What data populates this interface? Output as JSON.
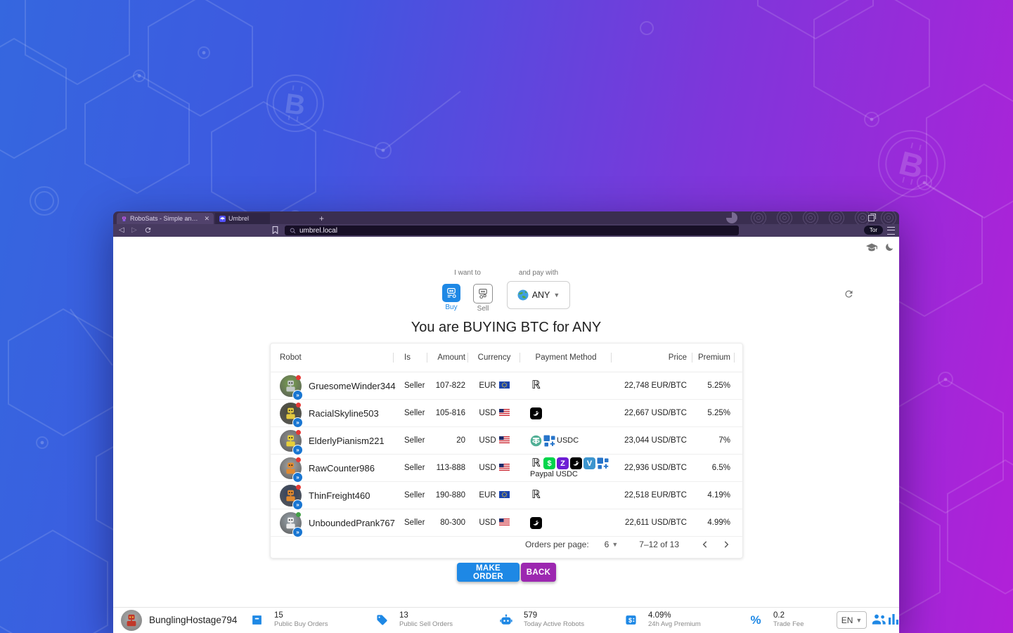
{
  "browser": {
    "tabs": [
      {
        "title": "RoboSats - Simple and Private Bit...",
        "favicon": "robosats-favicon"
      },
      {
        "title": "Umbrel",
        "favicon": "umbrel-favicon"
      }
    ],
    "new_tab_label": "+",
    "url": "umbrel.local",
    "tor_button_label": "Tor"
  },
  "controls": {
    "want_label": "I want to",
    "buy_label": "Buy",
    "sell_label": "Sell",
    "pay_label": "and pay with",
    "pay_selected": "ANY"
  },
  "title": "You are BUYING BTC for ANY",
  "orderbook": {
    "headers": {
      "robot": "Robot",
      "is": "Is",
      "amount": "Amount",
      "currency": "Currency",
      "payment": "Payment Method",
      "price": "Price",
      "premium": "Premium"
    },
    "rows": [
      {
        "robot": "GruesomeWinder344",
        "is": "Seller",
        "amount": "107-822",
        "currency": "EUR",
        "flag": "eu",
        "payments": [
          "revolut"
        ],
        "payment_text": "",
        "price": "22,748 EUR/BTC",
        "premium": "5.25%",
        "av_bg": "#79a24f",
        "av_fg": "#c2c9c5",
        "dot": "#e53935"
      },
      {
        "robot": "RacialSkyline503",
        "is": "Seller",
        "amount": "105-816",
        "currency": "USD",
        "flag": "us",
        "payments": [
          "strike"
        ],
        "payment_text": "",
        "price": "22,667 USD/BTC",
        "premium": "5.25%",
        "av_bg": "#4a4a38",
        "av_fg": "#e3c93f",
        "dot": "#e53935"
      },
      {
        "robot": "ElderlyPianism221",
        "is": "Seller",
        "amount": "20",
        "currency": "USD",
        "flag": "us",
        "payments": [
          "tether",
          "usdc"
        ],
        "payment_text": "USDC",
        "price": "23,044 USD/BTC",
        "premium": "7%",
        "av_bg": "#8f8f8f",
        "av_fg": "#e8cf3a",
        "dot": "#e53935"
      },
      {
        "robot": "RawCounter986",
        "is": "Seller",
        "amount": "113-888",
        "currency": "USD",
        "flag": "us",
        "payments": [
          "revolut",
          "cashapp",
          "zelle",
          "strike",
          "venmo",
          "usdc"
        ],
        "payment_text": "Paypal USDC",
        "price": "22,936 USD/BTC",
        "premium": "6.5%",
        "av_bg": "#a5a5a5",
        "av_fg": "#e0892f",
        "dot": "#e53935"
      },
      {
        "robot": "ThinFreight460",
        "is": "Seller",
        "amount": "190-880",
        "currency": "EUR",
        "flag": "eu",
        "payments": [
          "revolut"
        ],
        "payment_text": "",
        "price": "22,518 EUR/BTC",
        "premium": "4.19%",
        "av_bg": "#31415f",
        "av_fg": "#e0892f",
        "dot": "#e53935"
      },
      {
        "robot": "UnboundedPrank767",
        "is": "Seller",
        "amount": "80-300",
        "currency": "USD",
        "flag": "us",
        "payments": [
          "strike"
        ],
        "payment_text": "",
        "price": "22,611 USD/BTC",
        "premium": "4.99%",
        "av_bg": "#9aa5ad",
        "av_fg": "#ececec",
        "dot": "#43a047"
      }
    ],
    "pagination": {
      "label": "Orders per page:",
      "per_page": "6",
      "range": "7–12 of 13"
    }
  },
  "actions": {
    "make_order": "MAKE ORDER",
    "back": "BACK"
  },
  "statusbar": {
    "nickname": "BunglingHostage794",
    "stats": [
      {
        "icon": "buy-orders-icon",
        "value": "15",
        "label": "Public Buy Orders"
      },
      {
        "icon": "sell-tag-icon",
        "value": "13",
        "label": "Public Sell Orders"
      },
      {
        "icon": "robot-icon",
        "value": "579",
        "label": "Today Active Robots"
      },
      {
        "icon": "price-check-icon",
        "value": "4.09%",
        "label": "24h Avg Premium"
      },
      {
        "icon": "percent-icon",
        "value": "0.2",
        "label": "Trade Fee"
      }
    ],
    "language": "EN"
  },
  "colors": {
    "accent_blue": "#1e88e5",
    "accent_purple": "#9c27b0",
    "usdc_blue": "#2775ca",
    "tether_green": "#50af95",
    "cashapp_green": "#00d54b",
    "zelle_purple": "#6d1ed4",
    "venmo_blue": "#3d95ce"
  }
}
